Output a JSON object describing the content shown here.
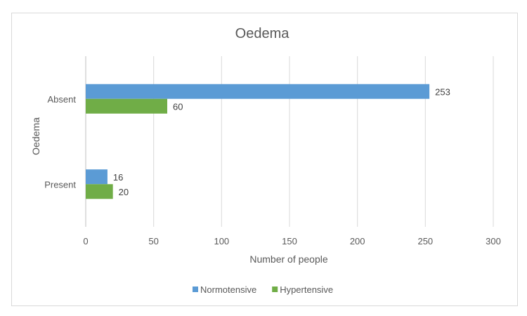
{
  "chart_data": {
    "type": "bar",
    "orientation": "horizontal",
    "title": "Oedema",
    "xlabel": "Number of people",
    "ylabel": "Oedema",
    "categories": [
      "Absent",
      "Present"
    ],
    "series": [
      {
        "name": "Normotensive",
        "color": "#5b9bd5",
        "values": [
          253,
          16
        ]
      },
      {
        "name": "Hypertensive",
        "color": "#70ad47",
        "values": [
          60,
          20
        ]
      }
    ],
    "xlim": [
      0,
      300
    ],
    "xticks": [
      0,
      50,
      100,
      150,
      200,
      250,
      300
    ],
    "grid": true,
    "legend_position": "bottom",
    "data_labels": true
  }
}
